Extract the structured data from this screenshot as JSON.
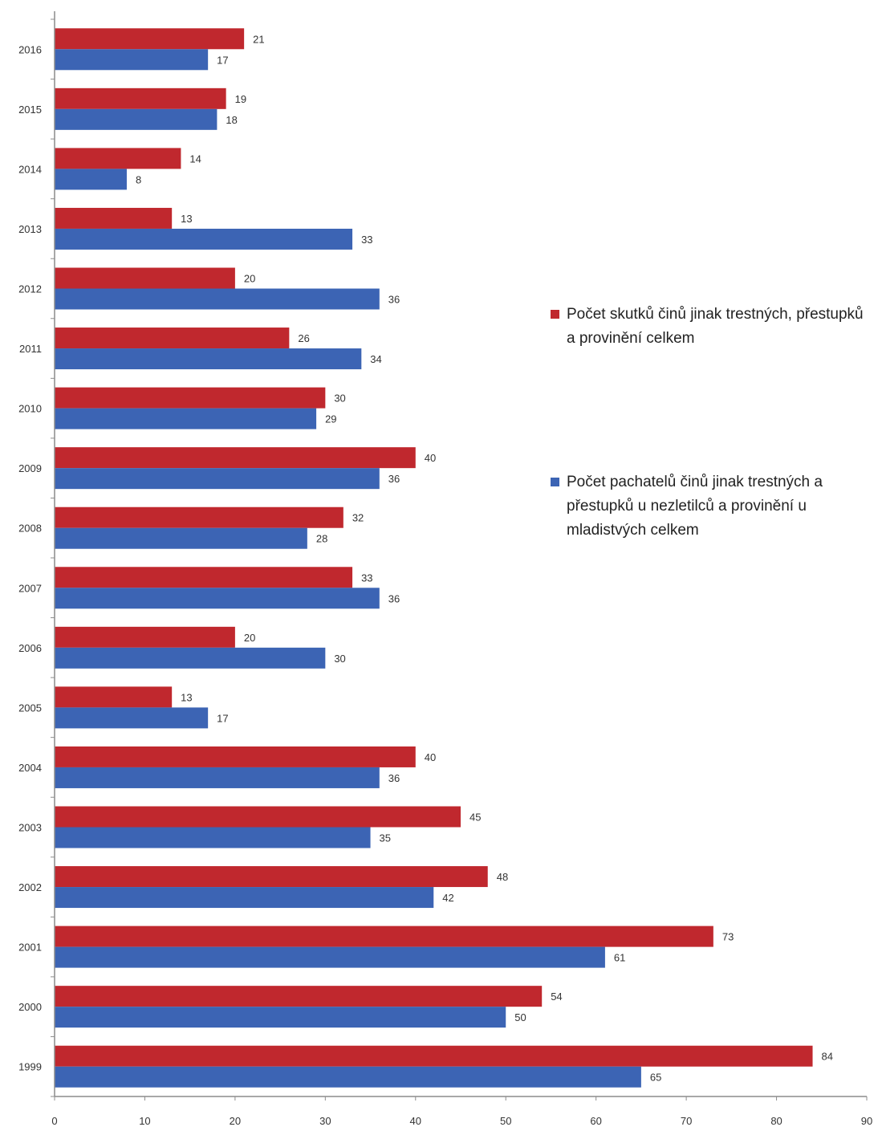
{
  "chart_data": {
    "type": "bar",
    "orientation": "horizontal",
    "categories": [
      "2016",
      "2015",
      "2014",
      "2013",
      "2012",
      "2011",
      "2010",
      "2009",
      "2008",
      "2007",
      "2006",
      "2005",
      "2004",
      "2003",
      "2002",
      "2001",
      "2000",
      "1999"
    ],
    "series": [
      {
        "name": "Počet skutků činů jinak trestných, přestupků a provinění celkem",
        "color": "#c0282e",
        "values": [
          21,
          19,
          14,
          13,
          20,
          26,
          30,
          40,
          32,
          33,
          20,
          13,
          40,
          45,
          48,
          73,
          54,
          84
        ]
      },
      {
        "name": "Počet pachatelů činů jinak trestných a přestupků u nezletilců a provinění u mladistvých celkem",
        "color": "#3c64b4",
        "values": [
          17,
          18,
          8,
          33,
          36,
          34,
          29,
          36,
          28,
          36,
          30,
          17,
          36,
          35,
          42,
          61,
          50,
          65
        ]
      }
    ],
    "xlim": [
      0,
      90
    ],
    "xticks": [
      "0",
      "10",
      "20",
      "30",
      "40",
      "50",
      "60",
      "70",
      "80",
      "90"
    ],
    "legend_position": "right",
    "grid": false
  },
  "legend": {
    "series1_label": "Počet skutků činů jinak trestných, přestupků a provinění celkem",
    "series2_label": "Počet pachatelů činů jinak trestných a přestupků u nezletilců a provinění u mladistvých celkem"
  }
}
